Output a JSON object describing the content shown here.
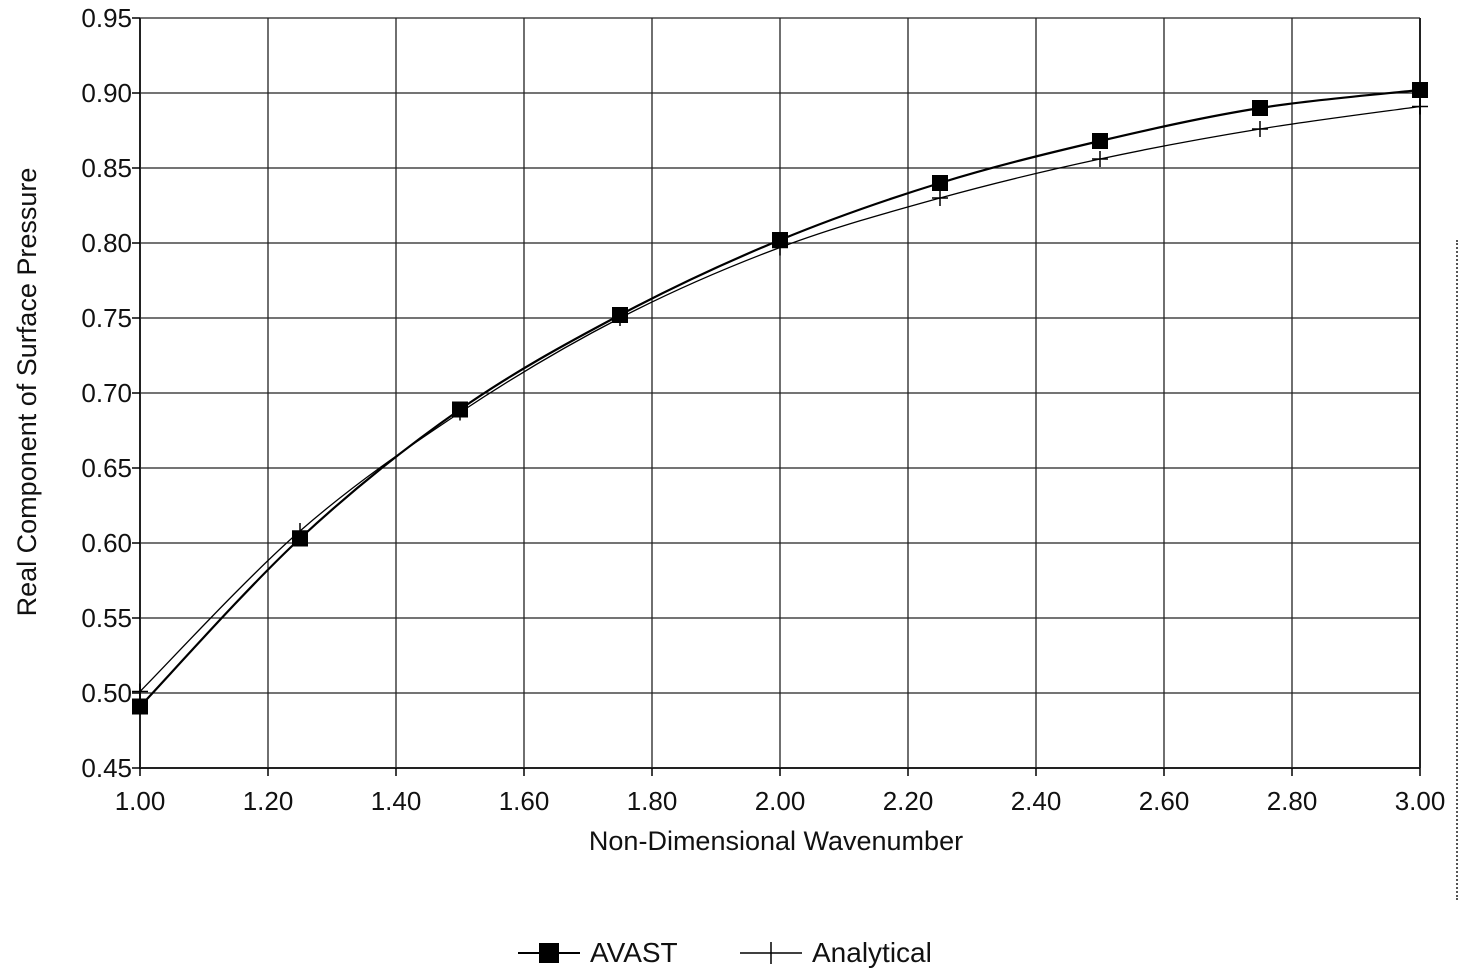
{
  "chart_data": {
    "type": "line",
    "xlabel": "Non-Dimensional Wavenumber",
    "ylabel": "Real Component of Surface Pressure",
    "xlim": [
      1.0,
      3.0
    ],
    "ylim": [
      0.45,
      0.95
    ],
    "xticks": [
      "1.00",
      "1.20",
      "1.40",
      "1.60",
      "1.80",
      "2.00",
      "2.20",
      "2.40",
      "2.60",
      "2.80",
      "3.00"
    ],
    "yticks": [
      "0.45",
      "0.50",
      "0.55",
      "0.60",
      "0.65",
      "0.70",
      "0.75",
      "0.80",
      "0.85",
      "0.90",
      "0.95"
    ],
    "grid": true,
    "legend_position": "bottom",
    "series": [
      {
        "name": "AVAST",
        "marker": "filled-square",
        "color": "#000000",
        "x": [
          1.0,
          1.25,
          1.5,
          1.75,
          2.0,
          2.25,
          2.5,
          2.75,
          3.0
        ],
        "values": [
          0.491,
          0.603,
          0.689,
          0.752,
          0.802,
          0.84,
          0.868,
          0.89,
          0.902
        ]
      },
      {
        "name": "Analytical",
        "marker": "plus",
        "color": "#000000",
        "x": [
          1.0,
          1.25,
          1.5,
          1.75,
          2.0,
          2.25,
          2.5,
          2.75,
          3.0
        ],
        "values": [
          0.501,
          0.608,
          0.687,
          0.75,
          0.797,
          0.83,
          0.856,
          0.876,
          0.891
        ]
      }
    ]
  }
}
